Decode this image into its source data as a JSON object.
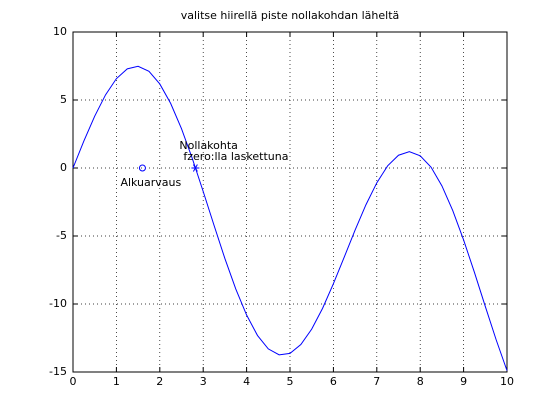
{
  "chart_data": {
    "type": "line",
    "title": "valitse hiirellä piste nollakohdan läheltä",
    "x": [
      0,
      0.25,
      0.5,
      0.75,
      1,
      1.25,
      1.5,
      1.75,
      2,
      2.25,
      2.5,
      2.75,
      3,
      3.25,
      3.5,
      3.75,
      4,
      4.25,
      4.5,
      4.75,
      5,
      5.25,
      5.5,
      5.75,
      6,
      6.25,
      6.5,
      6.75,
      7,
      7.25,
      7.5,
      7.75,
      8,
      8.25,
      8.5,
      8.75,
      9,
      9.25,
      9.5,
      9.75,
      10
    ],
    "values": [
      0,
      1.98,
      3.81,
      5.38,
      6.57,
      7.29,
      7.48,
      7.11,
      6.18,
      4.75,
      2.89,
      0.69,
      -1.73,
      -4.22,
      -6.66,
      -8.89,
      -10.81,
      -12.31,
      -13.3,
      -13.74,
      -13.63,
      -12.98,
      -11.85,
      -10.32,
      -8.51,
      -6.55,
      -4.56,
      -2.7,
      -1.09,
      0.16,
      0.94,
      1.2,
      0.9,
      0.06,
      -1.31,
      -3.13,
      -5.29,
      -7.68,
      -10.18,
      -12.63,
      -14.9
    ],
    "color": "#0000ff",
    "points": [
      {
        "x": 1.6,
        "y": 0,
        "marker": "o",
        "labels": [
          "Alkuarvaus"
        ]
      },
      {
        "x": 2.82,
        "y": 0,
        "marker": "*",
        "labels": [
          "Nollakohta",
          "fzero:lla laskettuna"
        ]
      }
    ],
    "xlim": [
      0,
      10
    ],
    "xticks": [
      0,
      1,
      2,
      3,
      4,
      5,
      6,
      7,
      8,
      9,
      10
    ],
    "ylim": [
      -15,
      10
    ],
    "yticks": [
      -15,
      -10,
      -5,
      0,
      5,
      10
    ],
    "grid": true
  }
}
